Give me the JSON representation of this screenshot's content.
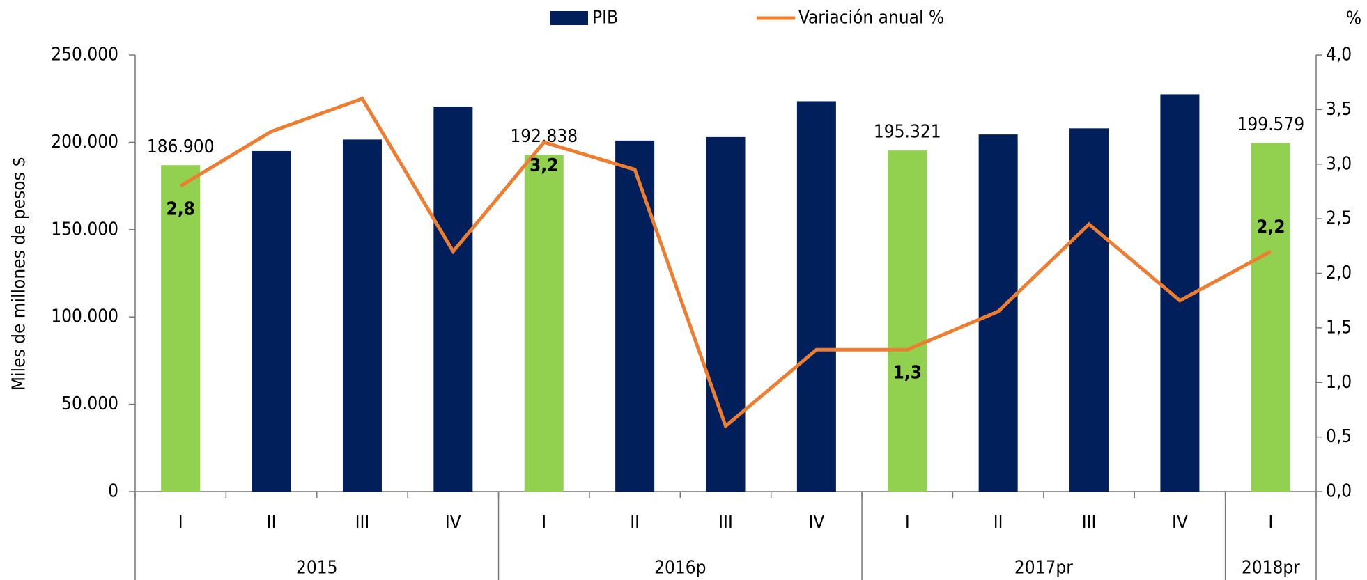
{
  "chart_data": {
    "type": "bar_line",
    "categories": [
      "I",
      "II",
      "III",
      "IV",
      "I",
      "II",
      "III",
      "IV",
      "I",
      "II",
      "III",
      "IV",
      "I"
    ],
    "groups": [
      "2015",
      null,
      null,
      null,
      "2016p",
      null,
      null,
      null,
      "2017pr",
      null,
      null,
      null,
      "2018pr"
    ],
    "series": [
      {
        "name": "PIB",
        "type": "bar",
        "color": "#001f5b",
        "colors": [
          "#92d050",
          "#001f5b",
          "#001f5b",
          "#001f5b",
          "#92d050",
          "#001f5b",
          "#001f5b",
          "#001f5b",
          "#92d050",
          "#001f5b",
          "#001f5b",
          "#001f5b",
          "#92d050"
        ],
        "values": [
          186900,
          195000,
          201600,
          220500,
          192838,
          201000,
          203000,
          223500,
          195321,
          204500,
          208000,
          227500,
          199579
        ],
        "value_labels": [
          "186.900",
          null,
          null,
          null,
          "192.838",
          null,
          null,
          null,
          "195.321",
          null,
          null,
          null,
          "199.579"
        ]
      },
      {
        "name": "Variación anual %",
        "type": "line",
        "axis": "y2",
        "color": "#ed7d31",
        "values": [
          2.8,
          3.3,
          3.6,
          2.2,
          3.2,
          2.95,
          0.6,
          1.3,
          1.3,
          1.65,
          2.45,
          1.75,
          2.2
        ],
        "value_labels": [
          "2,8",
          null,
          null,
          null,
          "3,2",
          null,
          null,
          null,
          "1,3",
          null,
          null,
          null,
          "2,2"
        ]
      }
    ],
    "y_label": "Miles de millones de pesos $",
    "y2_label": "%",
    "ylim": [
      0,
      250000
    ],
    "yticks": [
      0,
      {
        "value": 50000,
        "label": "50.000"
      },
      {
        "value": 100000,
        "label": "100.000"
      },
      {
        "value": 150000,
        "label": "150.000"
      },
      {
        "value": 200000,
        "label": "200.000"
      },
      {
        "value": 250000,
        "label": "250.000"
      }
    ],
    "y2lim": [
      0,
      4
    ],
    "y2ticks": [
      {
        "value": 0,
        "label": "0,0"
      },
      {
        "value": 0.5,
        "label": "0,5"
      },
      {
        "value": 1,
        "label": "1,0"
      },
      {
        "value": 1.5,
        "label": "1,5"
      },
      {
        "value": 2,
        "label": "2,0"
      },
      {
        "value": 2.5,
        "label": "2,5"
      },
      {
        "value": 3,
        "label": "3,0"
      },
      {
        "value": 3.5,
        "label": "3,5"
      },
      {
        "value": 4,
        "label": "4,0"
      }
    ],
    "legend": "top"
  }
}
